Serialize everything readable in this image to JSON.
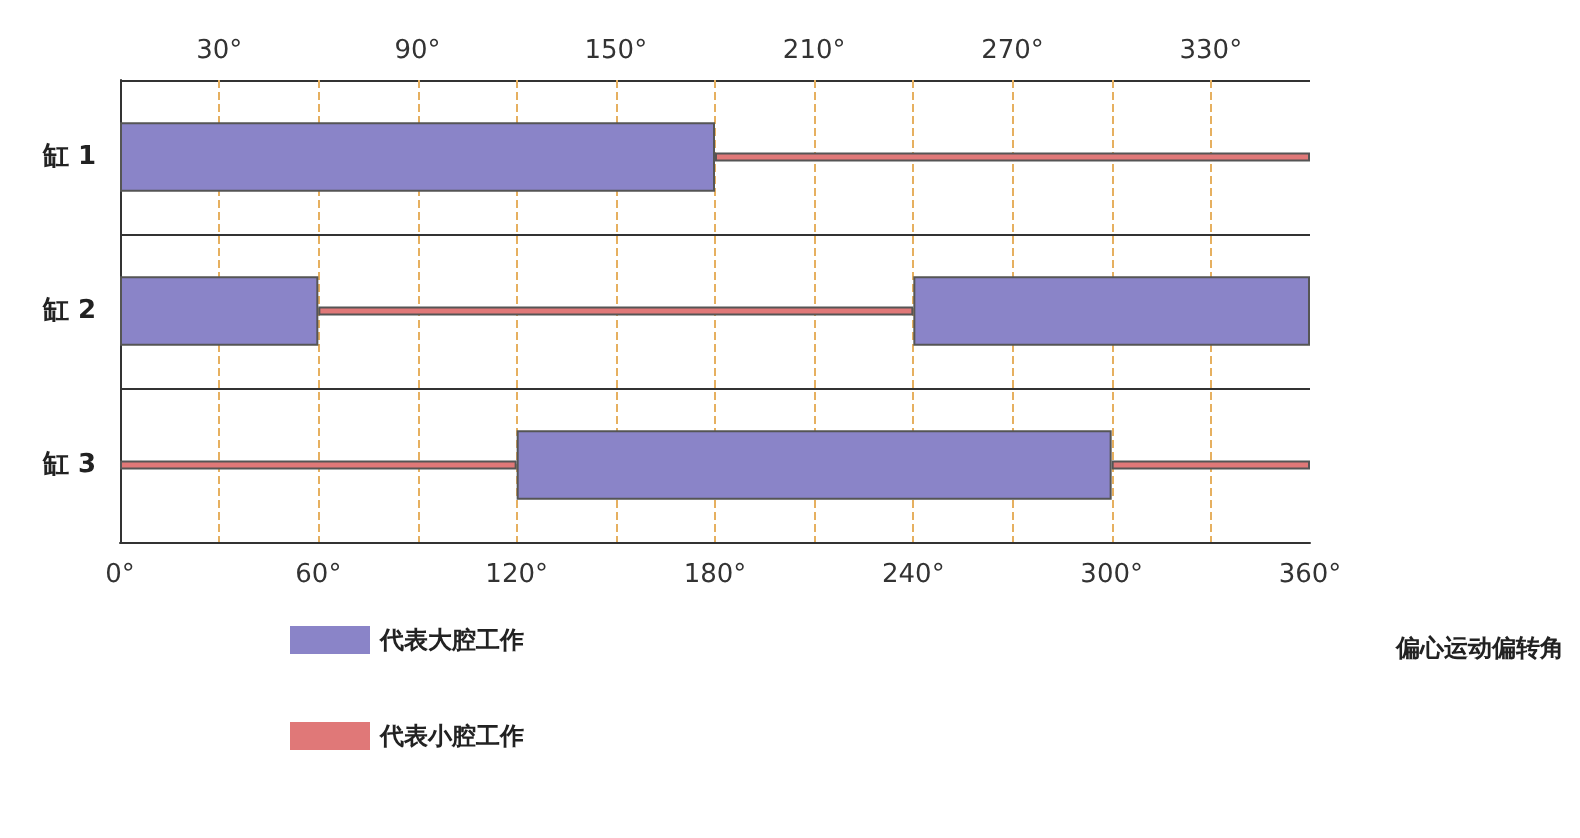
{
  "chart_data": {
    "type": "bar",
    "orientation": "horizontal",
    "categories": [
      "缸 1",
      "缸 2",
      "缸 3"
    ],
    "series": [
      {
        "name": "代表大腔工作",
        "color": "#8a84c8",
        "base": [
          0,
          0,
          120
        ],
        "values": [
          180,
          60,
          180
        ]
      },
      {
        "color": "#8a84c8",
        "base": [
          null,
          240,
          null
        ],
        "values": [
          null,
          120,
          null
        ]
      },
      {
        "name": "代表小腔工作",
        "color": "#e07878",
        "base": [
          180,
          60,
          0
        ],
        "values": [
          180,
          180,
          120
        ]
      },
      {
        "color": "#e07878",
        "base": [
          null,
          null,
          300
        ],
        "values": [
          null,
          null,
          60
        ]
      }
    ],
    "xlim": [
      0,
      360
    ],
    "xticks": [
      {
        "value": 0,
        "label": "0°"
      },
      {
        "value": 60,
        "label": "60°"
      },
      {
        "value": 120,
        "label": "120°"
      },
      {
        "value": 180,
        "label": "180°"
      },
      {
        "value": 240,
        "label": "240°"
      },
      {
        "value": 300,
        "label": "300°"
      },
      {
        "value": 360,
        "label": "360°"
      }
    ],
    "x2lim": [
      0,
      360
    ],
    "x2ticks": [
      {
        "value": 30,
        "label": "30°"
      },
      {
        "value": 90,
        "label": "90°"
      },
      {
        "value": 150,
        "label": "150°"
      },
      {
        "value": 210,
        "label": "210°"
      },
      {
        "value": 270,
        "label": "270°"
      },
      {
        "value": 330,
        "label": "330°"
      }
    ],
    "xlabel": "偏心运动偏转角",
    "grid": true,
    "legend": "bottom left"
  }
}
